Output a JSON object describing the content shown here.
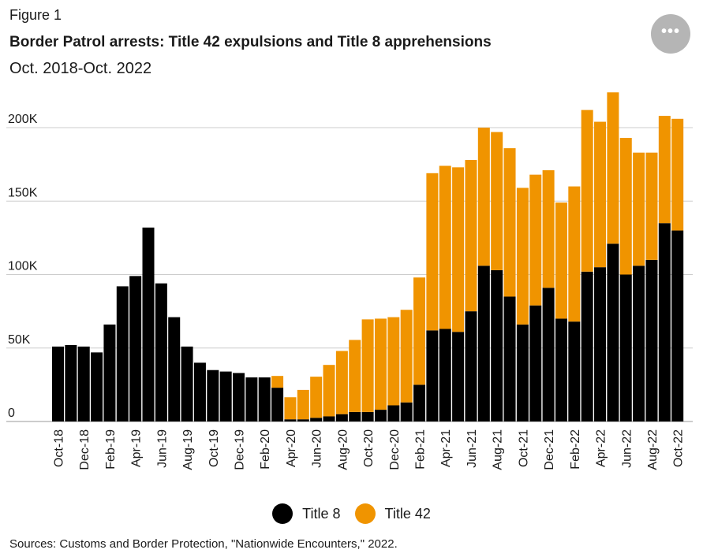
{
  "figure_label": "Figure 1",
  "more_button": "•••",
  "source": "Sources: Customs and Border Protection, \"Nationwide Encounters,\" 2022.",
  "colors": {
    "title8": "#000000",
    "title42": "#f09400",
    "grid": "#cccccc",
    "more_button_bg": "#b5b5b5"
  },
  "chart_data": {
    "type": "bar",
    "stacked": true,
    "title": "Border Patrol arrests: Title 42 expulsions and Title 8 apprehensions",
    "subtitle": "Oct. 2018-Oct. 2022",
    "xlabel": "",
    "ylabel": "",
    "ylim": [
      0,
      200000
    ],
    "grid": true,
    "legend_position": "bottom-center",
    "y_ticks": [
      0,
      50000,
      100000,
      150000,
      200000
    ],
    "y_tick_labels": [
      "0",
      "50K",
      "100K",
      "150K",
      "200K"
    ],
    "categories": [
      "Oct-18",
      "Nov-18",
      "Dec-18",
      "Jan-19",
      "Feb-19",
      "Mar-19",
      "Apr-19",
      "May-19",
      "Jun-19",
      "Jul-19",
      "Aug-19",
      "Sep-19",
      "Oct-19",
      "Nov-19",
      "Dec-19",
      "Jan-20",
      "Feb-20",
      "Mar-20",
      "Apr-20",
      "May-20",
      "Jun-20",
      "Jul-20",
      "Aug-20",
      "Sep-20",
      "Oct-20",
      "Nov-20",
      "Dec-20",
      "Jan-21",
      "Feb-21",
      "Mar-21",
      "Apr-21",
      "May-21",
      "Jun-21",
      "Jul-21",
      "Aug-21",
      "Sep-21",
      "Oct-21",
      "Nov-21",
      "Dec-21",
      "Jan-22",
      "Feb-22",
      "Mar-22",
      "Apr-22",
      "May-22",
      "Jun-22",
      "Jul-22",
      "Aug-22",
      "Sep-22",
      "Oct-22"
    ],
    "x_tick_labels": [
      "Oct-18",
      "Dec-18",
      "Feb-19",
      "Apr-19",
      "Jun-19",
      "Aug-19",
      "Oct-19",
      "Dec-19",
      "Feb-20",
      "Apr-20",
      "Jun-20",
      "Aug-20",
      "Oct-20",
      "Dec-20",
      "Feb-21",
      "Apr-21",
      "Jun-21",
      "Aug-21",
      "Oct-21",
      "Dec-21",
      "Feb-22",
      "Apr-22",
      "Jun-22",
      "Aug-22",
      "Oct-22"
    ],
    "series": [
      {
        "name": "Title 8",
        "color": "#000000",
        "values": [
          51000,
          52000,
          51000,
          47000,
          66000,
          92000,
          99000,
          132000,
          94000,
          71000,
          51000,
          40000,
          35000,
          34000,
          33000,
          30000,
          30000,
          23000,
          1500,
          1500,
          2500,
          3500,
          5000,
          6500,
          6500,
          8000,
          11000,
          13000,
          25000,
          62000,
          63000,
          61000,
          75000,
          106000,
          103000,
          85000,
          66000,
          79000,
          91000,
          70000,
          68000,
          102000,
          105000,
          121000,
          100000,
          106000,
          110000,
          135000,
          130000
        ]
      },
      {
        "name": "Title 42",
        "color": "#f09400",
        "values": [
          0,
          0,
          0,
          0,
          0,
          0,
          0,
          0,
          0,
          0,
          0,
          0,
          0,
          0,
          0,
          0,
          0,
          8000,
          15000,
          20000,
          28000,
          35000,
          43000,
          49000,
          63000,
          62000,
          60000,
          63000,
          73000,
          107000,
          111000,
          112000,
          103000,
          94000,
          94000,
          101000,
          93000,
          89000,
          80000,
          79000,
          92000,
          110000,
          99000,
          103000,
          93000,
          77000,
          73000,
          73000,
          76000
        ]
      }
    ]
  }
}
